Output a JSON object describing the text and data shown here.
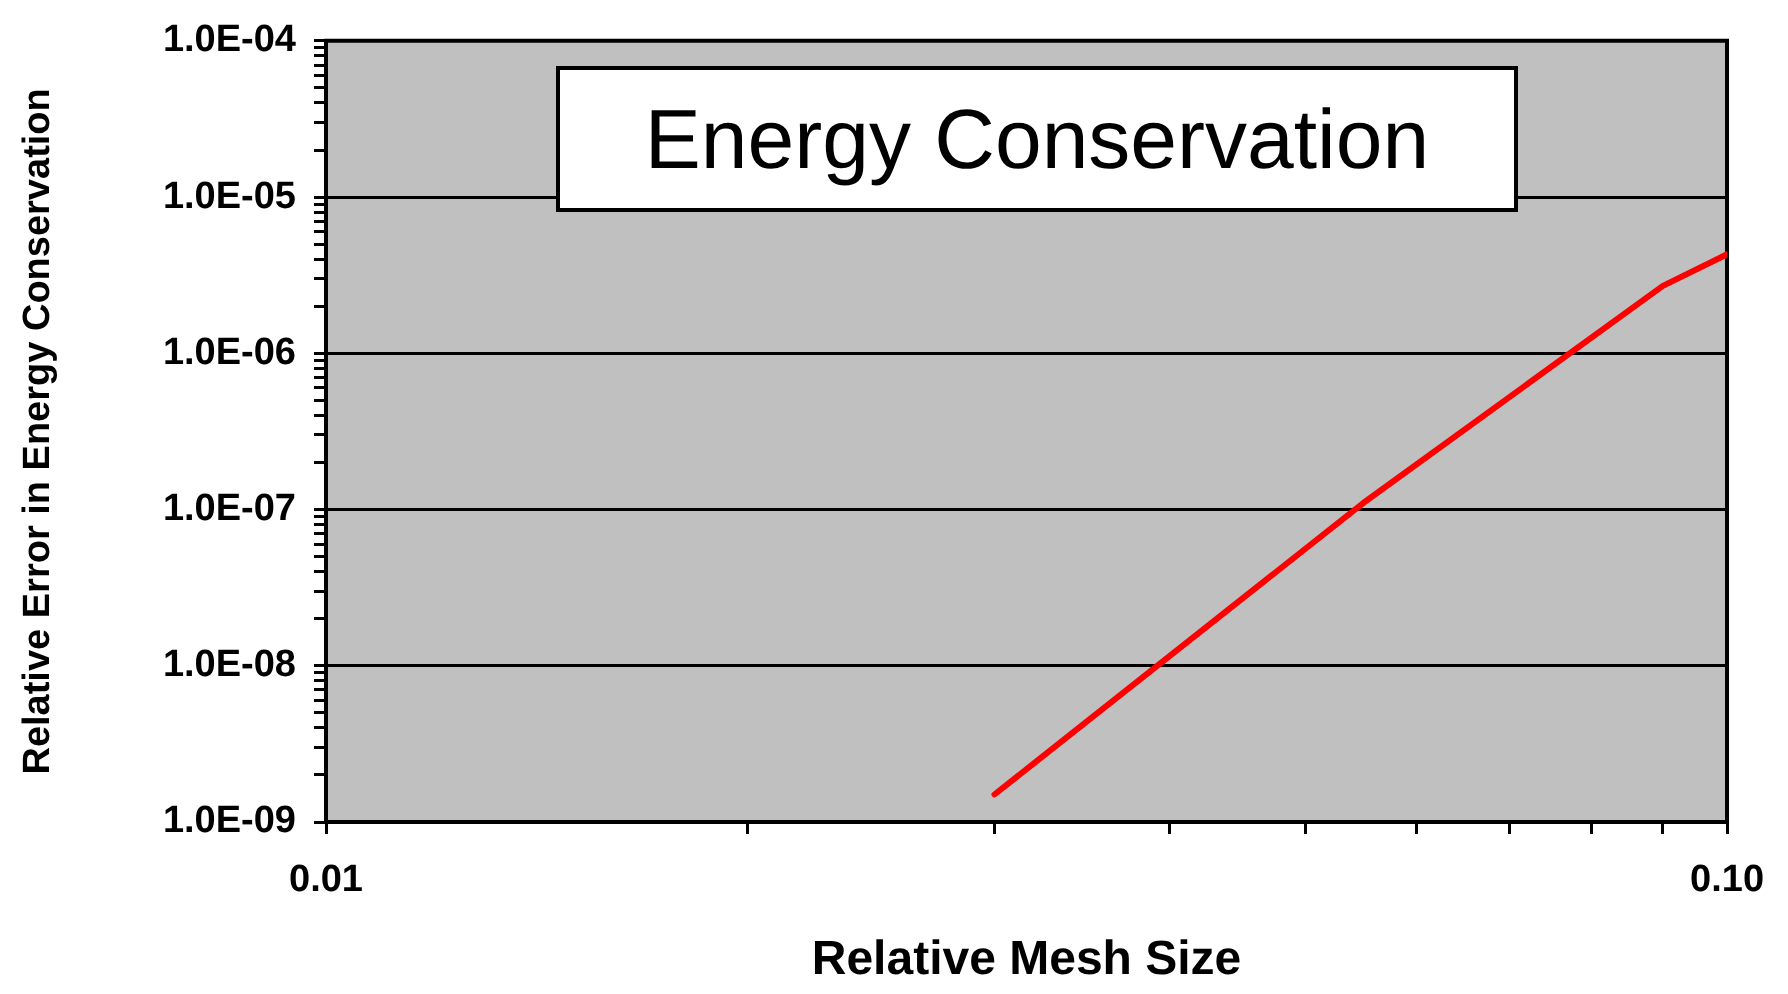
{
  "chart_data": {
    "type": "line",
    "title": "Energy Conservation",
    "xlabel": "Relative Mesh Size",
    "ylabel": "Relative Error in Energy Conservation",
    "x": [
      0.03,
      0.055,
      0.09,
      0.1
    ],
    "values": [
      1.5e-09,
      1.1e-07,
      2.7e-06,
      4.3e-06
    ],
    "color": "#ff0000",
    "log": "xy",
    "xlim": [
      0.01,
      0.1
    ],
    "ylim": [
      1e-09,
      0.0001
    ],
    "xticks": [
      0.01,
      {
        "value": 0.02,
        "label": null
      },
      {
        "value": 0.03,
        "label": null
      },
      {
        "value": 0.04,
        "label": null
      },
      {
        "value": 0.05,
        "label": null
      },
      {
        "value": 0.06,
        "label": null
      },
      {
        "value": 0.07,
        "label": null
      },
      {
        "value": 0.08,
        "label": null
      },
      {
        "value": 0.09,
        "label": null
      },
      {
        "value": 0.1,
        "label": "0.10"
      }
    ],
    "yticks": [
      {
        "value": 1e-09,
        "label": "1.0E-09"
      },
      {
        "value": 2e-09,
        "label": null
      },
      {
        "value": 3e-09,
        "label": null
      },
      {
        "value": 4e-09,
        "label": null
      },
      {
        "value": 5e-09,
        "label": null
      },
      {
        "value": 6e-09,
        "label": null
      },
      {
        "value": 7e-09,
        "label": null
      },
      {
        "value": 8e-09,
        "label": null
      },
      {
        "value": 9e-09,
        "label": null
      },
      {
        "value": 1e-08,
        "label": "1.0E-08"
      },
      {
        "value": 2e-08,
        "label": null
      },
      {
        "value": 3e-08,
        "label": null
      },
      {
        "value": 4e-08,
        "label": null
      },
      {
        "value": 5e-08,
        "label": null
      },
      {
        "value": 6e-08,
        "label": null
      },
      {
        "value": 7e-08,
        "label": null
      },
      {
        "value": 8e-08,
        "label": null
      },
      {
        "value": 9e-08,
        "label": null
      },
      {
        "value": 1e-07,
        "label": "1.0E-07"
      },
      {
        "value": 2e-07,
        "label": null
      },
      {
        "value": 3e-07,
        "label": null
      },
      {
        "value": 4e-07,
        "label": null
      },
      {
        "value": 5e-07,
        "label": null
      },
      {
        "value": 6e-07,
        "label": null
      },
      {
        "value": 7e-07,
        "label": null
      },
      {
        "value": 8e-07,
        "label": null
      },
      {
        "value": 9e-07,
        "label": null
      },
      {
        "value": 1e-06,
        "label": "1.0E-06"
      },
      {
        "value": 2e-06,
        "label": null
      },
      {
        "value": 3e-06,
        "label": null
      },
      {
        "value": 4e-06,
        "label": null
      },
      {
        "value": 5e-06,
        "label": null
      },
      {
        "value": 6e-06,
        "label": null
      },
      {
        "value": 7e-06,
        "label": null
      },
      {
        "value": 8e-06,
        "label": null
      },
      {
        "value": 9e-06,
        "label": null
      },
      {
        "value": 1e-05,
        "label": "1.0E-05"
      },
      {
        "value": 2e-05,
        "label": null
      },
      {
        "value": 3e-05,
        "label": null
      },
      {
        "value": 4e-05,
        "label": null
      },
      {
        "value": 5e-05,
        "label": null
      },
      {
        "value": 6e-05,
        "label": null
      },
      {
        "value": 7e-05,
        "label": null
      },
      {
        "value": 8e-05,
        "label": null
      },
      {
        "value": 9e-05,
        "label": null
      },
      {
        "value": 0.0001,
        "label": "1.0E-04"
      }
    ],
    "grid": "y",
    "marker": "none"
  }
}
